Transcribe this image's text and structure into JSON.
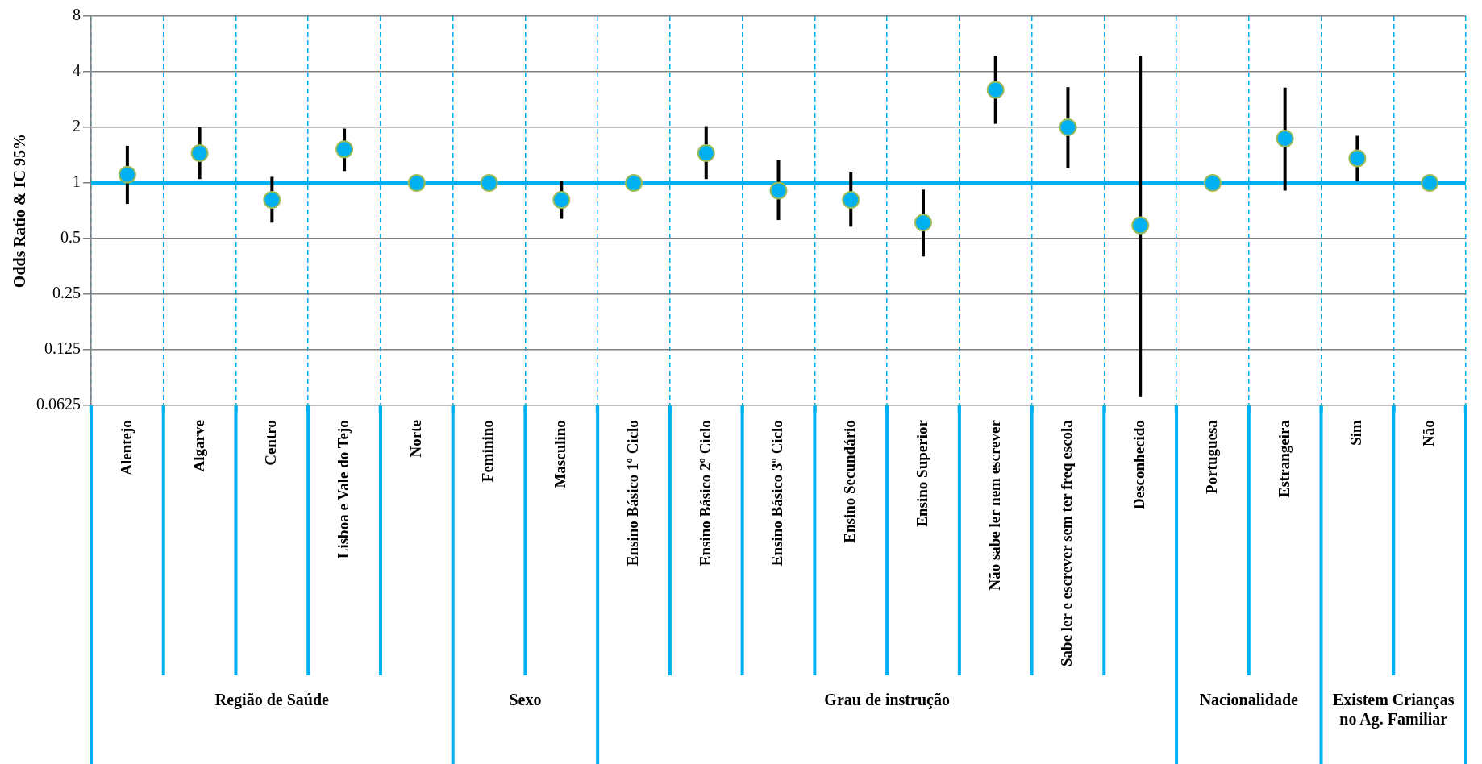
{
  "chart_data": {
    "type": "scatter",
    "ylabel": "Odds Ratio & IC 95%",
    "categories": [
      "Alentejo",
      "Algarve",
      "Centro",
      "Lisboa e Vale do Tejo",
      "Norte",
      "Feminino",
      "Masculino",
      "Ensino Básico 1º Ciclo",
      "Ensino Básico 2º Ciclo",
      "Ensino Básico 3º Ciclo",
      "Ensino Secundário",
      "Ensino Superior",
      "Não sabe ler nem escrever",
      "Sabe ler e escrever sem ter freq escola",
      "Desconhecido",
      "Portuguesa",
      "Estrangeira",
      "Sim",
      "Não"
    ],
    "series": [
      {
        "color": "#00b0f0",
        "values": [
          1.11,
          1.45,
          0.81,
          1.52,
          1,
          1,
          0.81,
          1,
          1.45,
          0.91,
          0.81,
          0.61,
          3.19,
          2.0,
          0.59,
          1,
          1.74,
          1.36,
          1
        ],
        "errors": [
          [
            0.77,
            1.59
          ],
          [
            1.05,
            2.0
          ],
          [
            0.61,
            1.08
          ],
          [
            1.16,
            1.97
          ],
          null,
          null,
          [
            0.64,
            1.03
          ],
          null,
          [
            1.05,
            2.03
          ],
          [
            0.63,
            1.33
          ],
          [
            0.58,
            1.14
          ],
          [
            0.4,
            0.92
          ],
          [
            2.09,
            4.88
          ],
          [
            1.2,
            3.3
          ],
          [
            0.07,
            4.88
          ],
          null,
          [
            0.91,
            3.28
          ],
          [
            1.02,
            1.8
          ],
          null
        ]
      }
    ],
    "annotations": [
      "Região de Saúde",
      "Sexo",
      "Grau de instrução",
      "Nacionalidade",
      "Existem Crianças no Ag. Familiar"
    ],
    "ref_lines": [
      {
        "axis": "y",
        "value": 1,
        "color": "#00b0f0"
      }
    ],
    "log": "y",
    "ylim": [
      0.0625,
      8
    ],
    "yticks": [
      0.0625,
      0.125,
      0.25,
      0.5,
      1,
      2,
      4,
      8
    ],
    "grid": true,
    "legend": false,
    "marker": "circle"
  }
}
